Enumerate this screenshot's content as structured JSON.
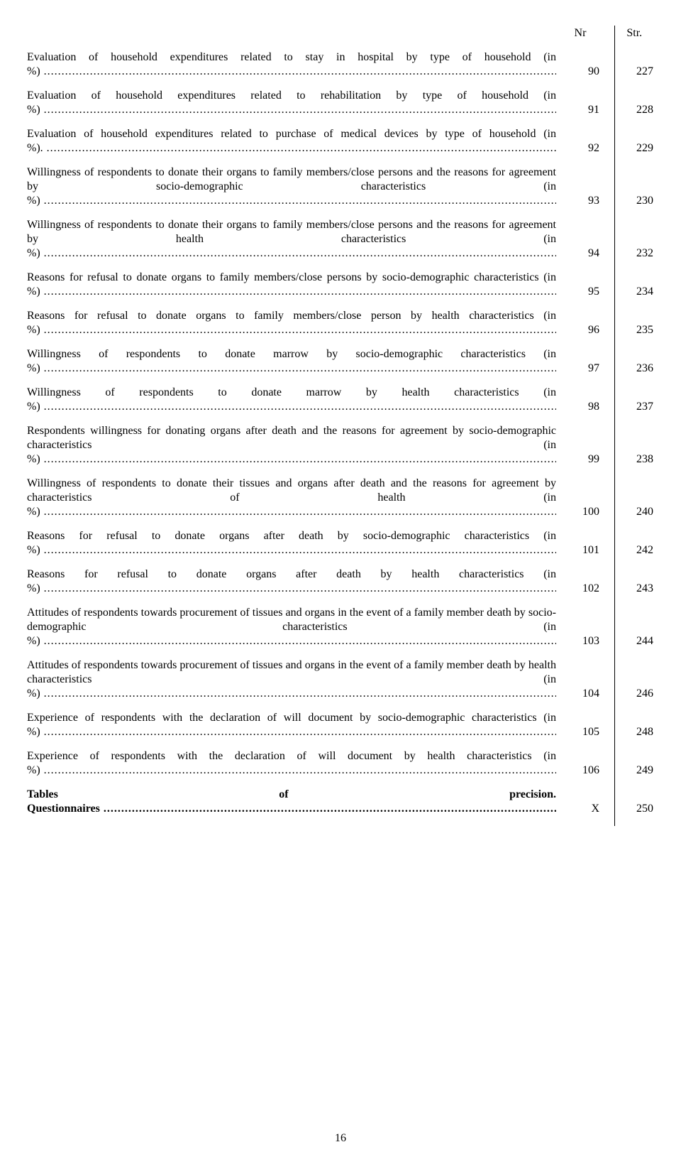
{
  "header": {
    "nr": "Nr",
    "str": "Str."
  },
  "entries": [
    {
      "title": "Evaluation of household expenditures related to stay in hospital by type of household (in %)",
      "nr": "90",
      "str": "227",
      "bold": false
    },
    {
      "title": "Evaluation of household expenditures related to rehabilitation by type of household (in %)",
      "nr": "91",
      "str": "228",
      "bold": false
    },
    {
      "title": "Evaluation of household expenditures related to purchase of medical devices by type of household (in %).",
      "nr": "92",
      "str": "229",
      "bold": false
    },
    {
      "title": "Willingness of respondents to donate their organs to family members/close persons and the reasons for agreement by socio-demographic characteristics (in %)",
      "nr": "93",
      "str": "230",
      "bold": false
    },
    {
      "title": "Willingness of respondents to donate their organs to family members/close persons and the reasons for agreement by health characteristics (in %)",
      "nr": "94",
      "str": "232",
      "bold": false
    },
    {
      "title": "Reasons for refusal to donate organs to family members/close persons by socio-demographic characteristics (in %)",
      "nr": "95",
      "str": "234",
      "bold": false
    },
    {
      "title": "Reasons for refusal to donate organs to family members/close person by health characteristics (in %)",
      "nr": "96",
      "str": "235",
      "bold": false
    },
    {
      "title": "Willingness of respondents to donate marrow by socio-demographic characteristics (in %)",
      "nr": "97",
      "str": "236",
      "bold": false
    },
    {
      "title": "Willingness of respondents to donate marrow by health characteristics (in %)",
      "nr": "98",
      "str": "237",
      "bold": false
    },
    {
      "title": "Respondents willingness for donating organs after death and the reasons for agreement by socio-demographic characteristics (in %)",
      "nr": "99",
      "str": "238",
      "bold": false
    },
    {
      "title": "Willingness of respondents to donate their tissues and organs after death and the reasons for agreement by characteristics of health (in %)",
      "nr": "100",
      "str": "240",
      "bold": false
    },
    {
      "title": "Reasons for refusal to donate organs after death by socio-demographic characteristics (in %)",
      "nr": "101",
      "str": "242",
      "bold": false
    },
    {
      "title": "Reasons for refusal to donate organs after death by health characteristics (in %)",
      "nr": "102",
      "str": "243",
      "bold": false
    },
    {
      "title": "Attitudes of respondents towards procurement of tissues and organs in the event of a family member death by socio-demographic characteristics (in %)",
      "nr": "103",
      "str": "244",
      "bold": false
    },
    {
      "title": "Attitudes of respondents towards procurement of tissues and organs in the event of a family member death by health characteristics (in %)",
      "nr": "104",
      "str": "246",
      "bold": false
    },
    {
      "title": "Experience of respondents with the declaration of will document by socio-demographic characteristics (in %)",
      "nr": "105",
      "str": "248",
      "bold": false
    },
    {
      "title": "Experience of respondents with the declaration of will document by health characteristics (in %)",
      "nr": "106",
      "str": "249",
      "bold": false
    },
    {
      "title": "Tables of precision. Questionnaires",
      "nr": "X",
      "str": "250",
      "bold": true
    }
  ],
  "page_number": "16"
}
